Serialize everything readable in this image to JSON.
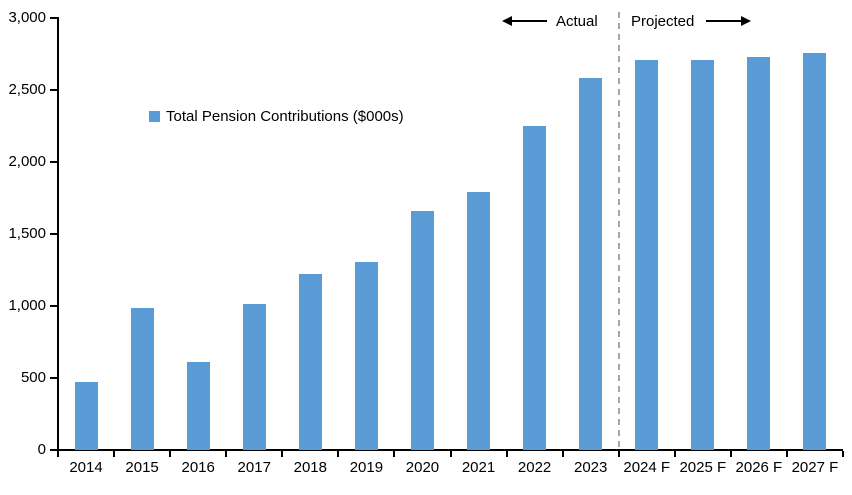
{
  "chart_data": {
    "type": "bar",
    "title": "",
    "xlabel": "",
    "ylabel": "",
    "categories": [
      "2014",
      "2015",
      "2016",
      "2017",
      "2018",
      "2019",
      "2020",
      "2021",
      "2022",
      "2023",
      "2024 F",
      "2025 F",
      "2026 F",
      "2027 F"
    ],
    "values": [
      470,
      985,
      610,
      1015,
      1225,
      1305,
      1660,
      1795,
      2250,
      2580,
      2710,
      2705,
      2730,
      2755
    ],
    "series_name": "Total Pension Contributions ($000s)",
    "ylim": [
      0,
      3000
    ],
    "yticks": [
      0,
      500,
      1000,
      1500,
      2000,
      2500,
      3000
    ],
    "ytick_labels": [
      "0",
      "500",
      "1,000",
      "1,500",
      "2,000",
      "2,500",
      "3,000"
    ],
    "bar_color": "#5B9BD5",
    "grid": false,
    "legend_position": "inside-upper-left",
    "actual_categories_count": 10,
    "divider_between": [
      "2023",
      "2024 F"
    ]
  },
  "legend": {
    "label": "Total Pension Contributions ($000s)",
    "swatch_color": "#5B9BD5"
  },
  "annotations": {
    "actual_label": "Actual",
    "projected_label": "Projected",
    "divider_color": "#A6A6A6",
    "arrow_color": "#000000"
  }
}
